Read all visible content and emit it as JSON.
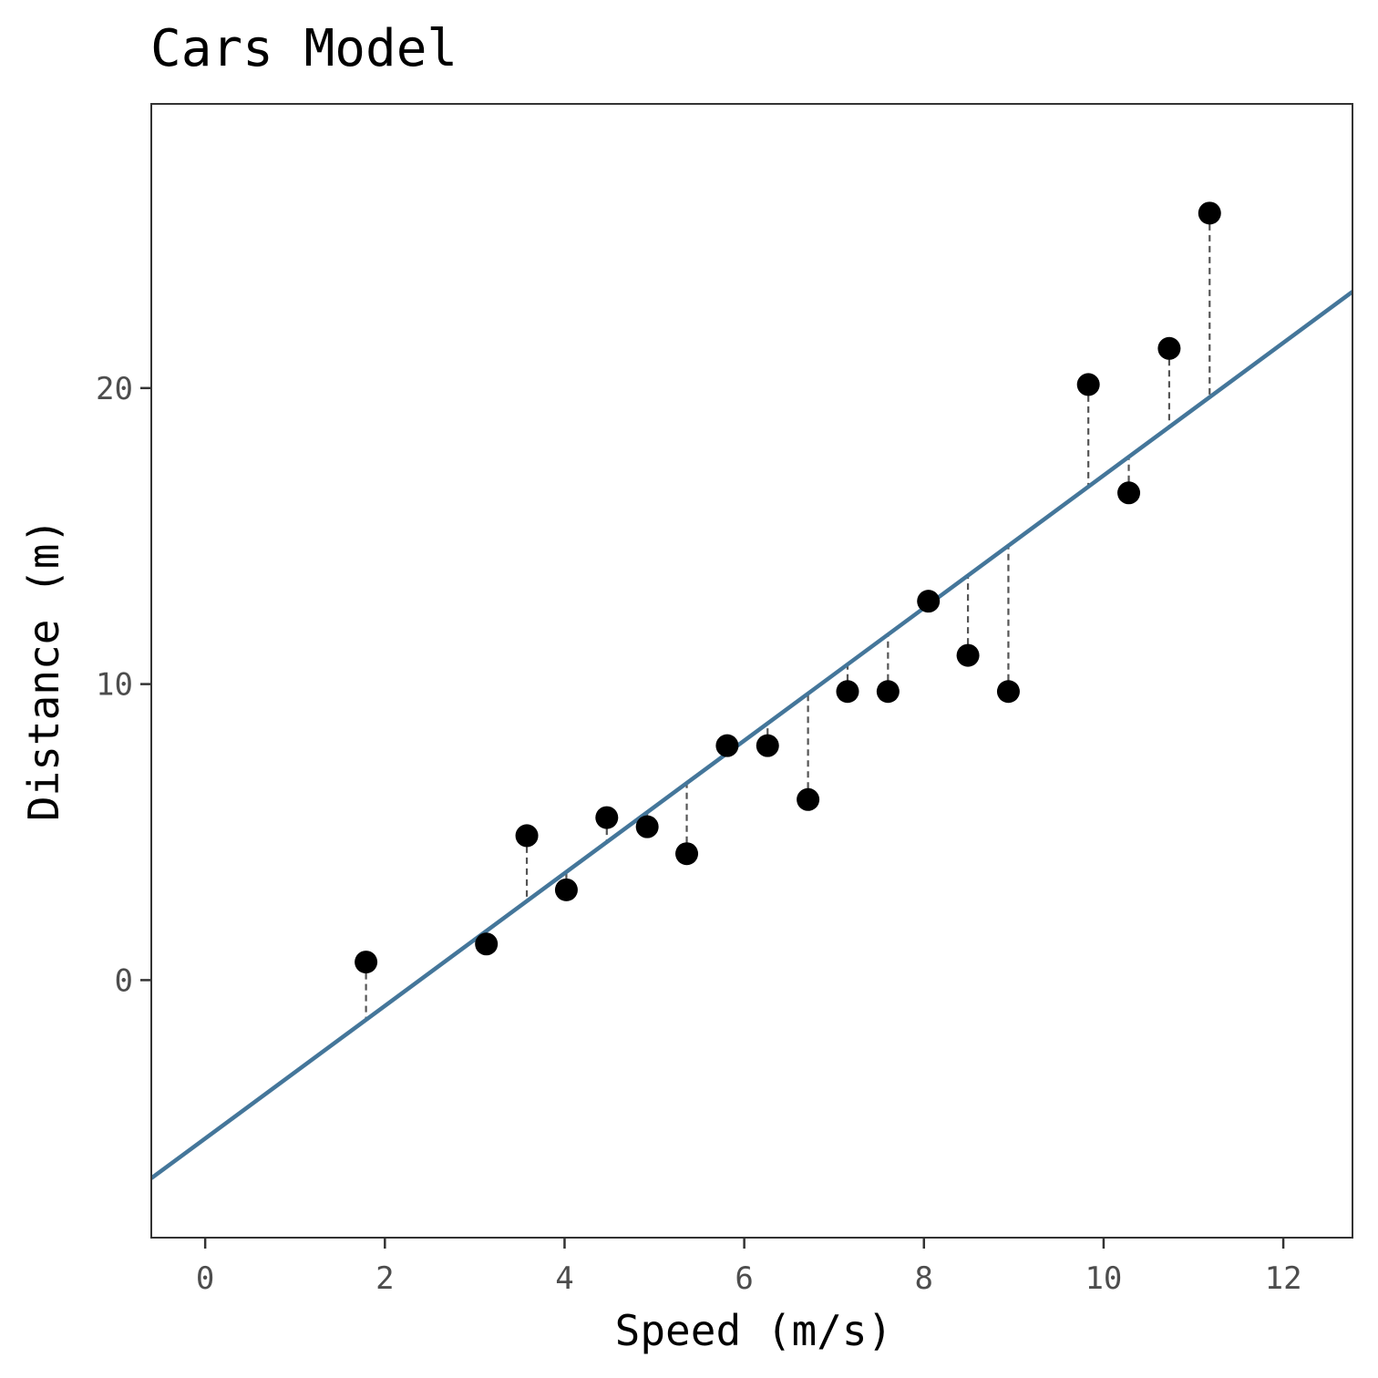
{
  "chart_data": {
    "type": "scatter",
    "title": "Cars Model",
    "xlabel": "Speed (m/s)",
    "ylabel": "Distance (m)",
    "xlim": [
      -0.6,
      12.77
    ],
    "ylim": [
      -8.7,
      29.6
    ],
    "x_ticks": [
      0,
      2,
      4,
      6,
      8,
      10,
      12
    ],
    "y_ticks": [
      0,
      10,
      20
    ],
    "grid": false,
    "legend": "none",
    "points": [
      {
        "x": 1.79,
        "y": 0.61
      },
      {
        "x": 3.13,
        "y": 1.22
      },
      {
        "x": 3.58,
        "y": 4.88
      },
      {
        "x": 4.02,
        "y": 3.05
      },
      {
        "x": 4.47,
        "y": 5.49
      },
      {
        "x": 4.92,
        "y": 5.18
      },
      {
        "x": 5.36,
        "y": 4.27
      },
      {
        "x": 5.81,
        "y": 7.92
      },
      {
        "x": 6.26,
        "y": 7.92
      },
      {
        "x": 6.71,
        "y": 6.1
      },
      {
        "x": 7.15,
        "y": 9.75
      },
      {
        "x": 7.6,
        "y": 9.75
      },
      {
        "x": 8.05,
        "y": 12.8
      },
      {
        "x": 8.49,
        "y": 10.97
      },
      {
        "x": 8.94,
        "y": 9.75
      },
      {
        "x": 9.83,
        "y": 20.12
      },
      {
        "x": 10.28,
        "y": 16.46
      },
      {
        "x": 10.73,
        "y": 21.34
      },
      {
        "x": 11.18,
        "y": 25.91
      }
    ],
    "fit_line": {
      "intercept": -5.35,
      "slope": 2.24,
      "color": "#44769A"
    },
    "residual_style": "dashed",
    "residual_color": "#555555",
    "point_color": "#000000",
    "panel_border_color": "#333333"
  }
}
